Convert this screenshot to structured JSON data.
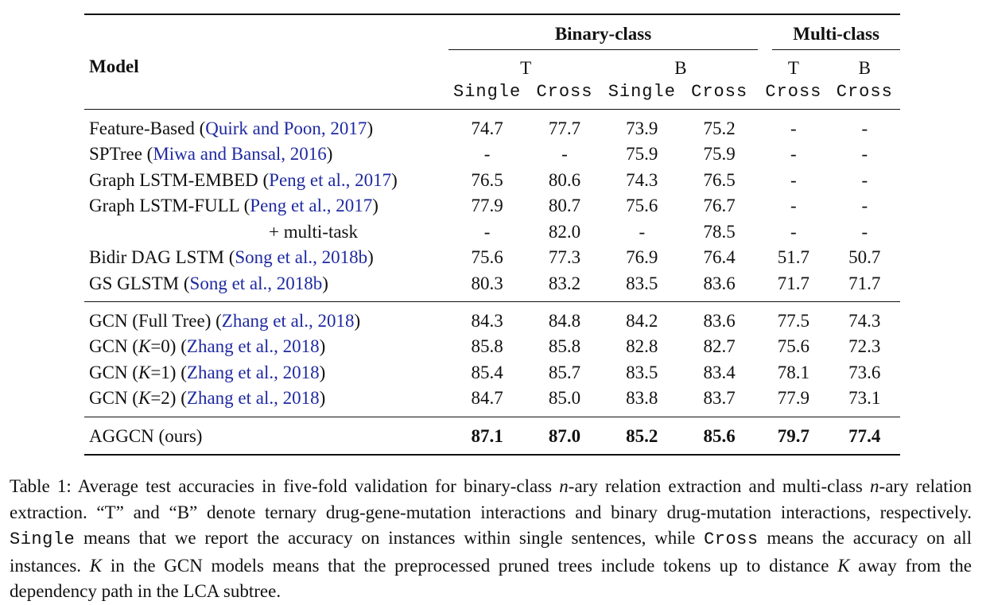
{
  "table": {
    "model_header": "Model",
    "group_headers": [
      "Binary-class",
      "Multi-class"
    ],
    "sub_headers": [
      "T",
      "B",
      "T",
      "B"
    ],
    "setting_headers": [
      "Single",
      "Cross",
      "Single",
      "Cross",
      "Cross",
      "Cross"
    ],
    "sections": [
      {
        "rows": [
          {
            "model": "Feature-Based",
            "cite": "Quirk and Poon, 2017",
            "values": [
              "74.7",
              "77.7",
              "73.9",
              "75.2",
              "-",
              "-"
            ]
          },
          {
            "model": "SPTree",
            "cite": "Miwa and Bansal, 2016",
            "values": [
              "-",
              "-",
              "75.9",
              "75.9",
              "-",
              "-"
            ]
          },
          {
            "model": "Graph LSTM-EMBED",
            "cite": "Peng et al., 2017",
            "values": [
              "76.5",
              "80.6",
              "74.3",
              "76.5",
              "-",
              "-"
            ]
          },
          {
            "model": "Graph LSTM-FULL",
            "cite": "Peng et al., 2017",
            "values": [
              "77.9",
              "80.7",
              "75.6",
              "76.7",
              "-",
              "-"
            ]
          },
          {
            "model": "+ multi-task",
            "cite": "",
            "values": [
              "-",
              "82.0",
              "-",
              "78.5",
              "-",
              "-"
            ]
          },
          {
            "model": "Bidir DAG LSTM",
            "cite": "Song et al., 2018b",
            "values": [
              "75.6",
              "77.3",
              "76.9",
              "76.4",
              "51.7",
              "50.7"
            ]
          },
          {
            "model": "GS GLSTM",
            "cite": "Song et al., 2018b",
            "values": [
              "80.3",
              "83.2",
              "83.5",
              "83.6",
              "71.7",
              "71.7"
            ]
          }
        ]
      },
      {
        "rows": [
          {
            "model": "GCN (Full Tree)",
            "cite": "Zhang et al., 2018",
            "values": [
              "84.3",
              "84.8",
              "84.2",
              "83.6",
              "77.5",
              "74.3"
            ]
          },
          {
            "model_pre": "GCN (",
            "model_var": "K",
            "model_post": "=0)",
            "cite": "Zhang et al., 2018",
            "values": [
              "85.8",
              "85.8",
              "82.8",
              "82.7",
              "75.6",
              "72.3"
            ]
          },
          {
            "model_pre": "GCN (",
            "model_var": "K",
            "model_post": "=1)",
            "cite": "Zhang et al., 2018",
            "values": [
              "85.4",
              "85.7",
              "83.5",
              "83.4",
              "78.1",
              "73.6"
            ]
          },
          {
            "model_pre": "GCN (",
            "model_var": "K",
            "model_post": "=2)",
            "cite": "Zhang et al., 2018",
            "values": [
              "84.7",
              "85.0",
              "83.8",
              "83.7",
              "77.9",
              "73.1"
            ]
          }
        ]
      },
      {
        "rows": [
          {
            "model": "AGGCN (ours)",
            "cite": "",
            "values": [
              "87.1",
              "87.0",
              "85.2",
              "85.6",
              "79.7",
              "77.4"
            ]
          }
        ]
      }
    ]
  },
  "caption": {
    "p1": "Table 1: Average test accuracies in five-fold validation for binary-class ",
    "v1": "n",
    "p2": "-ary relation extraction and multi-class ",
    "v2": "n",
    "p3": "-ary relation extraction. “T” and “B” denote ternary drug-gene-mutation interactions and binary drug-mutation interactions, respectively. ",
    "m1": "Single",
    "p4": " means that we report the accuracy on instances within single sentences, while ",
    "m2": "Cross",
    "p5": " means the accuracy on all instances. ",
    "v3": "K",
    "p6": " in the GCN models means that the preprocessed pruned trees include tokens up to distance ",
    "v4": "K",
    "p7": " away from the dependency path in the LCA subtree."
  }
}
